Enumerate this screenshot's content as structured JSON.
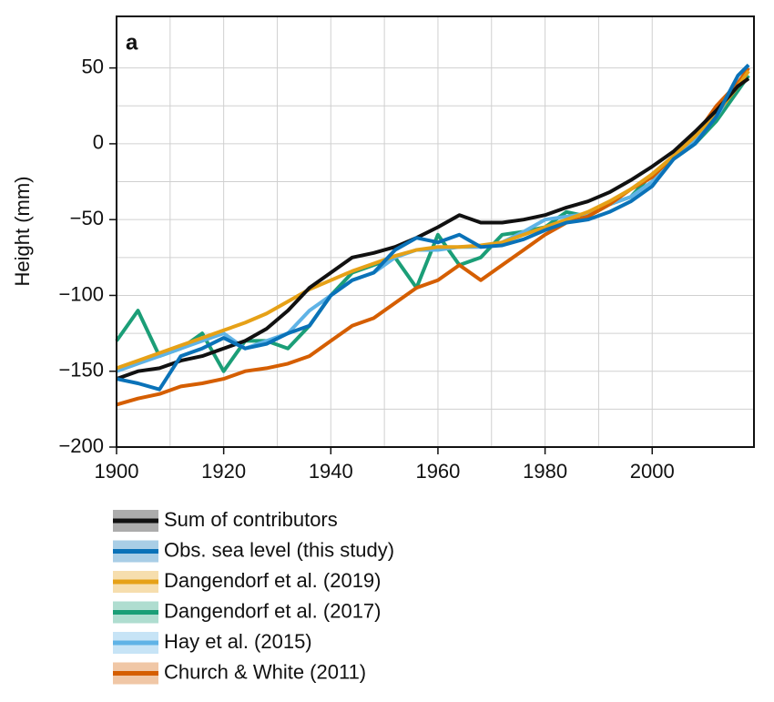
{
  "chart_data": {
    "type": "line",
    "panel_label": "a",
    "ylabel": "Height (mm)",
    "xlim": [
      1900,
      2019
    ],
    "ylim": [
      -200,
      84
    ],
    "xticks": [
      1900,
      1920,
      1940,
      1960,
      1980,
      2000
    ],
    "yticks": [
      {
        "value": -200,
        "label": "−200"
      },
      {
        "value": -150,
        "label": "−150"
      },
      {
        "value": -100,
        "label": "−100"
      },
      {
        "value": -50,
        "label": "−50"
      },
      0,
      50
    ],
    "grid": true,
    "x": [
      1900,
      1904,
      1908,
      1912,
      1916,
      1920,
      1924,
      1928,
      1932,
      1936,
      1940,
      1944,
      1948,
      1952,
      1956,
      1960,
      1964,
      1968,
      1972,
      1976,
      1980,
      1984,
      1988,
      1992,
      1996,
      2000,
      2004,
      2008,
      2012,
      2016,
      2018
    ],
    "series": [
      {
        "name": "Dangendorf et al. (2017)",
        "color": "#1b9e77",
        "values": [
          -130,
          -110,
          -140,
          -135,
          -125,
          -150,
          -130,
          -130,
          -135,
          -120,
          -100,
          -85,
          -80,
          -75,
          -95,
          -60,
          -80,
          -75,
          -60,
          -58,
          -55,
          -45,
          -48,
          -40,
          -35,
          -20,
          -10,
          0,
          15,
          35,
          45
        ]
      },
      {
        "name": "Hay et al. (2015)",
        "color": "#5fb3e6",
        "values": [
          -150,
          -145,
          -140,
          -135,
          -130,
          -125,
          -135,
          -130,
          -125,
          -110,
          -100,
          -90,
          -85,
          -75,
          -70,
          -70,
          -68,
          -68,
          -65,
          -58,
          -50,
          -48,
          -46,
          -40,
          -35,
          -25,
          -10,
          2,
          18,
          40,
          50
        ]
      },
      {
        "name": "Church & White (2011)",
        "color": "#d55e00",
        "values": [
          -172,
          -168,
          -165,
          -160,
          -158,
          -155,
          -150,
          -148,
          -145,
          -140,
          -130,
          -120,
          -115,
          -105,
          -95,
          -90,
          -80,
          -90,
          -80,
          -70,
          -60,
          -52,
          -48,
          -40,
          -30,
          -22,
          -8,
          5,
          25,
          40,
          50
        ]
      },
      {
        "name": "Dangendorf et al. (2019)",
        "color": "#e6a117",
        "values": [
          -148,
          -143,
          -138,
          -133,
          -128,
          -123,
          -118,
          -112,
          -104,
          -96,
          -90,
          -84,
          -79,
          -74,
          -70,
          -68,
          -68,
          -67,
          -65,
          -60,
          -55,
          -50,
          -45,
          -38,
          -30,
          -20,
          -8,
          5,
          20,
          38,
          48
        ]
      },
      {
        "name": "Sum of contributors",
        "color": "#111111",
        "values": [
          -155,
          -150,
          -148,
          -143,
          -140,
          -135,
          -130,
          -122,
          -110,
          -95,
          -85,
          -75,
          -72,
          -68,
          -62,
          -55,
          -47,
          -52,
          -52,
          -50,
          -47,
          -42,
          -38,
          -32,
          -24,
          -15,
          -5,
          8,
          22,
          38,
          43
        ]
      },
      {
        "name": "Obs. sea level (this study)",
        "color": "#0a72b8",
        "values": [
          -155,
          -158,
          -162,
          -140,
          -135,
          -128,
          -135,
          -132,
          -125,
          -120,
          -100,
          -90,
          -85,
          -70,
          -62,
          -65,
          -60,
          -68,
          -67,
          -63,
          -57,
          -52,
          -50,
          -45,
          -38,
          -28,
          -10,
          0,
          18,
          45,
          52
        ]
      }
    ],
    "legend_order": [
      4,
      5,
      3,
      0,
      1,
      2
    ]
  }
}
